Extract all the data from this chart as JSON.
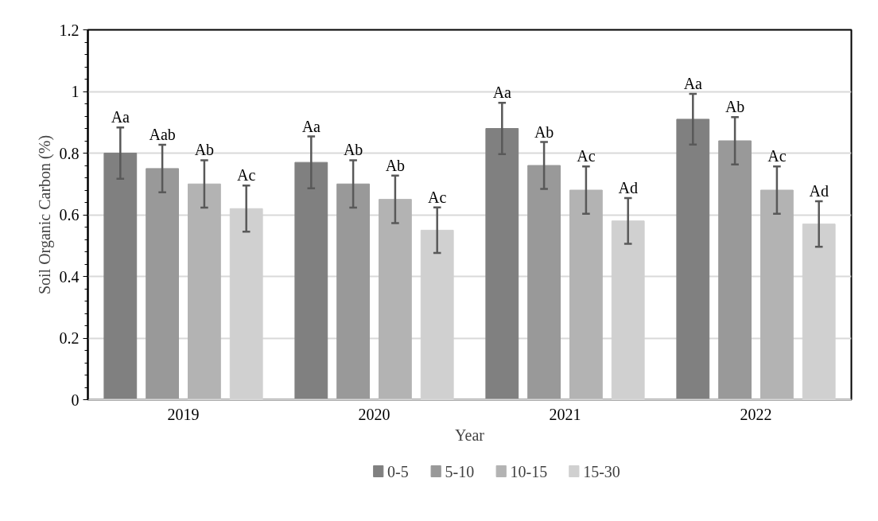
{
  "chart_data": {
    "type": "bar",
    "xlabel": "Year",
    "ylabel": "Soil Organic Carbon (%)",
    "categories": [
      "2019",
      "2020",
      "2021",
      "2022"
    ],
    "series": [
      {
        "name": "0-5",
        "color": "#808080",
        "values": [
          0.8,
          0.77,
          0.88,
          0.91
        ],
        "errors": [
          0.083,
          0.084,
          0.083,
          0.082
        ],
        "value_labels": [
          "Aa",
          "Aa",
          "Aa",
          "Aa"
        ]
      },
      {
        "name": "5-10",
        "color": "#999999",
        "values": [
          0.75,
          0.7,
          0.76,
          0.84
        ],
        "errors": [
          0.077,
          0.077,
          0.076,
          0.077
        ],
        "value_labels": [
          "Aab",
          "Ab",
          "Ab",
          "Ab"
        ]
      },
      {
        "name": "10-15",
        "color": "#b3b3b3",
        "values": [
          0.7,
          0.65,
          0.68,
          0.68
        ],
        "errors": [
          0.077,
          0.077,
          0.077,
          0.077
        ],
        "value_labels": [
          "Ab",
          "Ab",
          "Ac",
          "Ac"
        ]
      },
      {
        "name": "15-30",
        "color": "#d0d0d0",
        "values": [
          0.62,
          0.55,
          0.58,
          0.57
        ],
        "errors": [
          0.075,
          0.074,
          0.074,
          0.074
        ],
        "value_labels": [
          "Ac",
          "Ac",
          "Ad",
          "Ad"
        ]
      }
    ],
    "ylim": [
      0,
      1.2
    ],
    "yticks": [
      0,
      {
        "value": 0.2,
        "label": "0.2"
      },
      {
        "value": 0.4,
        "label": "0.4"
      },
      {
        "value": 0.6,
        "label": "0.6"
      },
      {
        "value": 0.8,
        "label": "0.8"
      },
      1,
      {
        "value": 1.2,
        "label": "1.2"
      }
    ],
    "grid": "y",
    "legend": "bottom"
  }
}
